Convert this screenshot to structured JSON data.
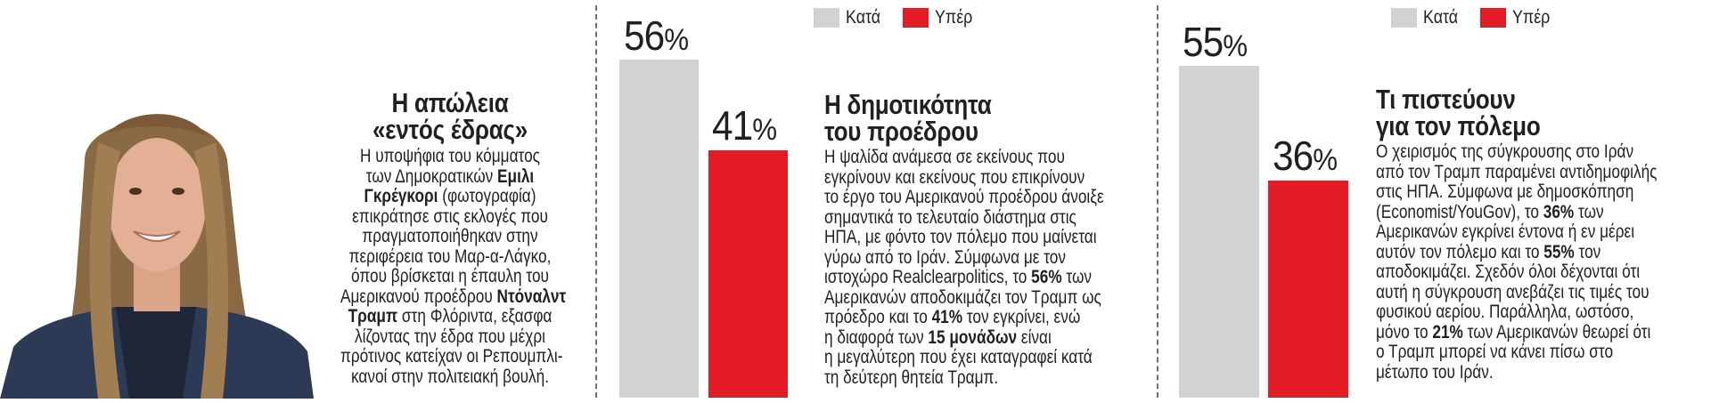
{
  "colors": {
    "against": "#d1d2d4",
    "for": "#e21b25",
    "text": "#231f20",
    "divider": "#6d6e71"
  },
  "legend": {
    "against_label": "Κατά",
    "for_label": "Υπέρ"
  },
  "left_article": {
    "photo_alt": "Έμιλι Γκρέγκορι",
    "title_lines": [
      "Η απώλεια",
      "«εντός έδρας»"
    ],
    "body_lines": [
      [
        {
          "t": "Η υποψήφια του κόμματος"
        }
      ],
      [
        {
          "t": "των Δημοκρατικών "
        },
        {
          "t": "Εμιλι",
          "b": true
        }
      ],
      [
        {
          "t": "Γκρέγκορι",
          "b": true
        },
        {
          "t": " (φωτογραφία)"
        }
      ],
      [
        {
          "t": "επικράτησε στις εκλογές που"
        }
      ],
      [
        {
          "t": "πραγματοποιήθηκαν στην"
        }
      ],
      [
        {
          "t": "περιφέρεια του Μαρ-α-Λάγκο,"
        }
      ],
      [
        {
          "t": "όπου βρίσκεται η έπαυλη του"
        }
      ],
      [
        {
          "t": "Αμερικανού προέδρου "
        },
        {
          "t": "Ντόναλντ",
          "b": true
        }
      ],
      [
        {
          "t": "Τραμπ",
          "b": true
        },
        {
          "t": " στη Φλόριντα, εξασφα"
        }
      ],
      [
        {
          "t": "λίζοντας την έδρα που μέχρι"
        }
      ],
      [
        {
          "t": "πρότινος κατείχαν οι Ρεπουμπλι-"
        }
      ],
      [
        {
          "t": "κανοί στην πολιτειακή βουλή."
        }
      ]
    ]
  },
  "middle_article": {
    "title_lines": [
      "Η δημοτικότητα",
      "του προέδρου"
    ],
    "body_lines": [
      [
        {
          "t": "Η ψαλίδα ανάμεσα σε εκείνους που"
        }
      ],
      [
        {
          "t": "εγκρίνουν και εκείνους που επικρίνουν"
        }
      ],
      [
        {
          "t": "το έργο του Αμερικανού προέδρου άνοιξε"
        }
      ],
      [
        {
          "t": "σημαντικά το τελευταίο διάστημα στις"
        }
      ],
      [
        {
          "t": "ΗΠΑ, με φόντο τον πόλεμο που μαίνεται"
        }
      ],
      [
        {
          "t": "γύρω από το Ιράν. Σύμφωνα με τον"
        }
      ],
      [
        {
          "t": "ιστοχώρο Realclearpolitics, το "
        },
        {
          "t": "56%",
          "b": true
        },
        {
          "t": " των"
        }
      ],
      [
        {
          "t": "Αμερικανών αποδοκιμάζει τον Τραμπ ως"
        }
      ],
      [
        {
          "t": "πρόεδρο και το "
        },
        {
          "t": "41%",
          "b": true
        },
        {
          "t": " τον εγκρίνει, ενώ"
        }
      ],
      [
        {
          "t": "η διαφορά των "
        },
        {
          "t": "15 μονάδων",
          "b": true
        },
        {
          "t": " είναι"
        }
      ],
      [
        {
          "t": "η μεγαλύτερη που έχει καταγραφεί κατά"
        }
      ],
      [
        {
          "t": "τη δεύτερη θητεία Τραμπ."
        }
      ]
    ]
  },
  "right_article": {
    "title_lines": [
      "Τι πιστεύουν",
      "για τον πόλεμο"
    ],
    "body_lines": [
      [
        {
          "t": "Ο χειρισμός της σύγκρουσης στο Ιράν"
        }
      ],
      [
        {
          "t": "από τον Τραμπ παραμένει αντιδημοφιλής"
        }
      ],
      [
        {
          "t": "στις ΗΠΑ. Σύμφωνα με δημοσκόπηση"
        }
      ],
      [
        {
          "t": "(Economist/YouGov), το "
        },
        {
          "t": "36%",
          "b": true
        },
        {
          "t": " των"
        }
      ],
      [
        {
          "t": "Αμερικανών εγκρίνει έντονα ή εν μέρει"
        }
      ],
      [
        {
          "t": "αυτόν τον πόλεμο και το "
        },
        {
          "t": "55%",
          "b": true
        },
        {
          "t": " τον"
        }
      ],
      [
        {
          "t": "αποδοκιμάζει. Σχεδόν όλοι δέχονται ότι"
        }
      ],
      [
        {
          "t": "αυτή η σύγκρουση ανεβάζει τις τιμές του"
        }
      ],
      [
        {
          "t": "φυσικού αερίου. Παράλληλα, ωστόσο,"
        }
      ],
      [
        {
          "t": "μόνο το "
        },
        {
          "t": "21%",
          "b": true
        },
        {
          "t": " των Αμερικανών θεωρεί ότι"
        }
      ],
      [
        {
          "t": "ο Τραμπ μπορεί να κάνει πίσω στο"
        }
      ],
      [
        {
          "t": "μέτωπο του Ιράν."
        }
      ]
    ]
  },
  "chart_data": [
    {
      "type": "bar",
      "title": "Η δημοτικότητα του προέδρου",
      "categories": [
        "Κατά",
        "Υπέρ"
      ],
      "values": [
        56,
        41
      ],
      "labels": [
        "56%",
        "41%"
      ],
      "colors": [
        "#d1d2d4",
        "#e21b25"
      ],
      "legend": [
        "Κατά",
        "Υπέρ"
      ],
      "legend_position": "top",
      "xlabel": "",
      "ylabel": "",
      "ylim": [
        0,
        100
      ],
      "grid": false
    },
    {
      "type": "bar",
      "title": "Τι πιστεύουν για τον πόλεμο",
      "categories": [
        "Κατά",
        "Υπέρ"
      ],
      "values": [
        55,
        36
      ],
      "labels": [
        "55%",
        "36%"
      ],
      "colors": [
        "#d1d2d4",
        "#e21b25"
      ],
      "legend": [
        "Κατά",
        "Υπέρ"
      ],
      "legend_position": "top",
      "xlabel": "",
      "ylabel": "",
      "ylim": [
        0,
        100
      ],
      "grid": false
    }
  ]
}
